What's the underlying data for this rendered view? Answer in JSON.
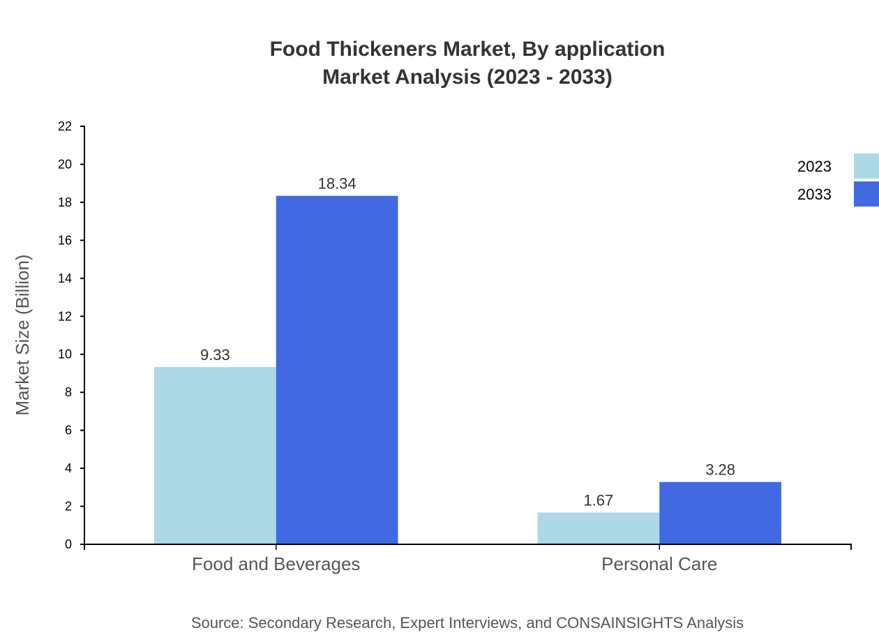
{
  "chart_data": {
    "type": "bar",
    "title_lines": [
      "Food Thickeners Market, By application",
      "Market Analysis (2023 - 2033)"
    ],
    "xlabel": "",
    "ylabel": "Market Size (Billion)",
    "ylim": [
      0,
      22
    ],
    "yticks": [
      0,
      2,
      4,
      6,
      8,
      10,
      12,
      14,
      16,
      18,
      20,
      22
    ],
    "categories": [
      "Food and Beverages",
      "Personal Care"
    ],
    "series": [
      {
        "name": "2023",
        "values": [
          9.33,
          1.67
        ],
        "labels": [
          "9.33",
          "1.67"
        ],
        "color": "#add8e6"
      },
      {
        "name": "2033",
        "values": [
          18.34,
          3.28
        ],
        "labels": [
          "18.34",
          "3.28"
        ],
        "color": "#4169e1"
      }
    ],
    "grid": false,
    "legend_position": "top-right",
    "source": "Source: Secondary Research, Expert Interviews, and CONSAINSIGHTS Analysis"
  }
}
